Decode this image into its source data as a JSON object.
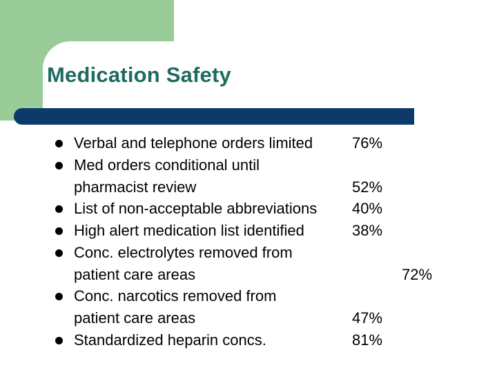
{
  "slide": {
    "title": "Medication Safety",
    "colors": {
      "title": "#1f6b60",
      "bar": "#0b3a6b",
      "accent": "#99cc99"
    }
  },
  "lines": [
    {
      "text": "Verbal and telephone orders limited",
      "value": "76%"
    },
    {
      "text": "Med orders conditional until",
      "value": ""
    },
    {
      "text": "pharmacist review",
      "value": "52%"
    },
    {
      "text": "List of non-acceptable abbreviations",
      "value": "40%"
    },
    {
      "text": "High alert medication list identified",
      "value": "38%"
    },
    {
      "text": "Conc. electrolytes removed from",
      "value": ""
    },
    {
      "text": "patient care areas",
      "value": "72%"
    },
    {
      "text": "Conc. narcotics removed from",
      "value": ""
    },
    {
      "text": "patient care areas",
      "value": "47%"
    },
    {
      "text": "Standardized heparin concs.",
      "value": "81%"
    }
  ]
}
